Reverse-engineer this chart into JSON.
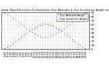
{
  "title": "Solar Panel/Inverter Performance Sun Altitude & Sun Incidence Angle on PV Panels",
  "blue_label": "Sun Altitude Angle",
  "red_label": "Sun Incidence Angle",
  "x_times": [
    "4:45",
    "5:15",
    "5:45",
    "6:15",
    "6:45",
    "7:15",
    "7:45",
    "8:15",
    "8:45",
    "9:15",
    "9:45",
    "10:15",
    "10:45",
    "11:15",
    "11:45",
    "12:15",
    "12:45",
    "13:15",
    "13:45",
    "14:15",
    "14:45",
    "15:15",
    "15:45",
    "16:15",
    "16:45",
    "17:15",
    "17:45",
    "18:15",
    "18:45",
    "19:15",
    "19:45"
  ],
  "blue_y": [
    2,
    5,
    9,
    13,
    18,
    23,
    28,
    33,
    38,
    43,
    48,
    52,
    56,
    59,
    61,
    62,
    61,
    59,
    56,
    52,
    48,
    43,
    38,
    33,
    28,
    23,
    18,
    13,
    9,
    5,
    2
  ],
  "red_y": [
    88,
    85,
    81,
    77,
    72,
    67,
    62,
    57,
    52,
    47,
    42,
    38,
    34,
    31,
    29,
    28,
    29,
    31,
    34,
    38,
    42,
    47,
    52,
    57,
    62,
    67,
    72,
    77,
    81,
    85,
    88
  ],
  "ylim": [
    0,
    90
  ],
  "yticks": [
    0,
    10,
    20,
    30,
    40,
    50,
    60,
    70,
    80,
    90
  ],
  "ytick_labels": [
    "0",
    "10",
    "20",
    "30",
    "40",
    "50",
    "60",
    "70",
    "80",
    "90"
  ],
  "background_color": "#ffffff",
  "blue_color": "#0000cc",
  "red_color": "#cc0000",
  "grid_color": "#bbbbbb",
  "title_fontsize": 3.2,
  "tick_fontsize": 2.8,
  "legend_fontsize": 2.8
}
